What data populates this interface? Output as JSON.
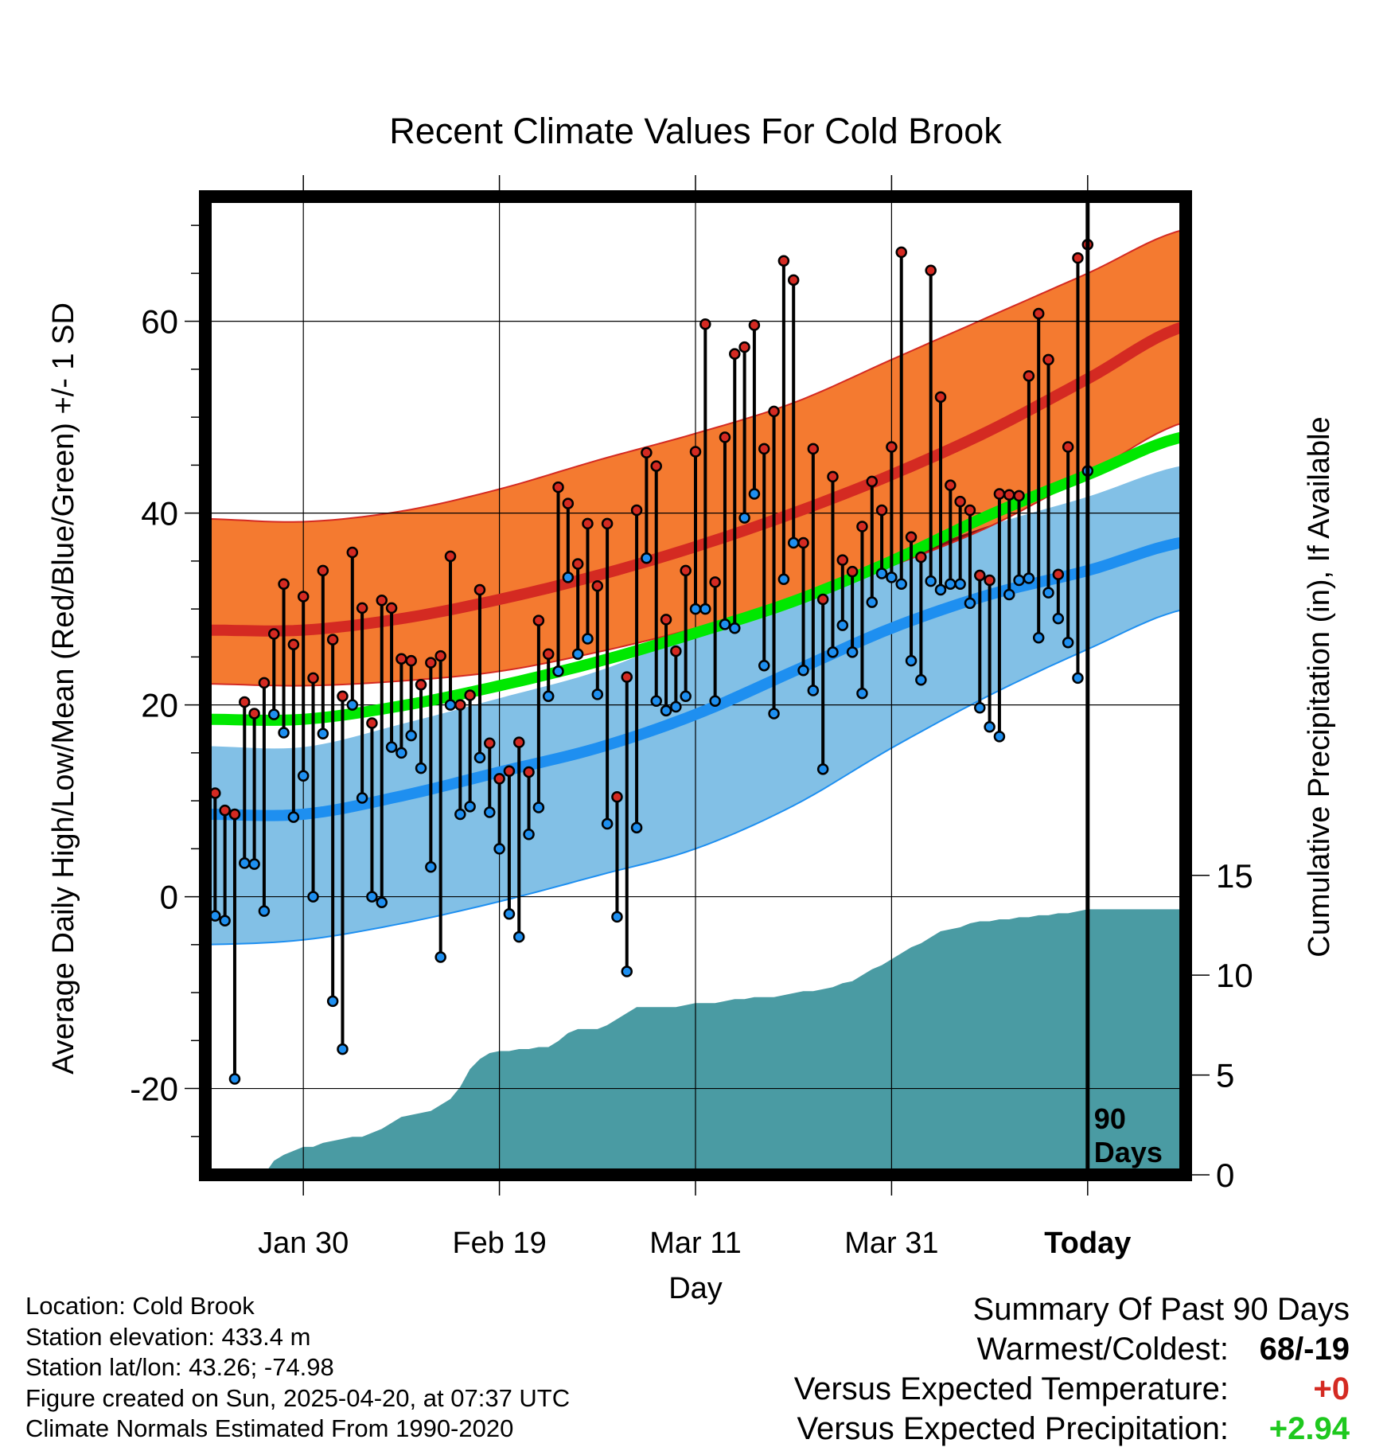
{
  "chart_data": {
    "type": "line",
    "title": "Recent Climate Values For Cold Brook",
    "xlabel": "Day",
    "ylabel": "Average Daily High/Low/Mean (Red/Blue/Green) +/- 1 SD",
    "y2label": "Cumulative Precipitation (in), If Available",
    "x_tick_labels": [
      "Jan 30",
      "Feb 19",
      "Mar 11",
      "Mar 31",
      "Today"
    ],
    "x_tick_days": [
      10,
      30,
      50,
      70,
      90
    ],
    "xlim": [
      0,
      100
    ],
    "ylim": [
      -29,
      73
    ],
    "y_ticks": [
      -20,
      0,
      20,
      40,
      60
    ],
    "y2_ticks": [
      0,
      5,
      10,
      15
    ],
    "y2lim": [
      0,
      49
    ],
    "today_day": 90,
    "today_label_line1": "90",
    "today_label_line2": "Days",
    "grid": true,
    "colors": {
      "high_band": "#f47a30",
      "high_line": "#d42a22",
      "low_band": "#82c0e6",
      "low_line": "#1e8ff0",
      "mean_line": "#00e800",
      "overlap": "#8c1414",
      "precip": "#4a9ba3",
      "point_high": "#d42a22",
      "point_low": "#1e8ff0"
    },
    "normals": {
      "days": [
        0,
        10,
        20,
        30,
        40,
        50,
        60,
        70,
        80,
        90,
        100
      ],
      "high_mean": [
        27.8,
        27.8,
        29.0,
        31.0,
        33.5,
        36.5,
        40.0,
        44.0,
        48.6,
        54.0,
        59.5
      ],
      "high_upper": [
        39.4,
        39.1,
        40.2,
        42.5,
        45.5,
        48.3,
        51.5,
        56.0,
        60.5,
        65.0,
        69.6
      ],
      "high_lower": [
        22.2,
        22.0,
        22.5,
        23.5,
        25.5,
        28.0,
        31.0,
        34.5,
        38.6,
        44.0,
        49.5
      ],
      "mean": [
        18.5,
        18.5,
        19.9,
        22.0,
        24.5,
        27.5,
        30.8,
        35.0,
        39.8,
        44.0,
        48.0
      ],
      "low_mean": [
        8.6,
        8.6,
        10.5,
        13.0,
        15.5,
        19.0,
        23.5,
        28.0,
        31.5,
        34.0,
        37.0
      ],
      "low_upper": [
        15.7,
        15.6,
        18.0,
        20.7,
        23.5,
        27.5,
        31.0,
        35.0,
        38.7,
        41.7,
        45.0
      ],
      "low_lower": [
        -5.0,
        -4.5,
        -2.8,
        -0.5,
        2.2,
        5.0,
        9.5,
        15.5,
        21.0,
        25.8,
        30.0
      ]
    },
    "series": [
      {
        "name": "High",
        "values": [
          10.8,
          9.0,
          8.6,
          20.3,
          19.1,
          22.3,
          27.4,
          32.6,
          26.3,
          31.3,
          22.8,
          34.0,
          26.8,
          20.9,
          35.9,
          30.1,
          18.1,
          30.9,
          30.1,
          24.8,
          24.6,
          22.1,
          24.4,
          25.1,
          35.5,
          20.0,
          21.0,
          32.0,
          16.0,
          12.3,
          13.1,
          16.1,
          13.0,
          28.8,
          25.3,
          42.7,
          41.0,
          34.7,
          38.9,
          32.4,
          38.9,
          10.4,
          22.9,
          40.3,
          46.3,
          44.9,
          28.9,
          25.6,
          34.0,
          46.4,
          59.7,
          32.8,
          47.9,
          56.6,
          57.3,
          59.6,
          46.7,
          50.6,
          66.3,
          64.3,
          36.9,
          46.7,
          31.0,
          43.8,
          35.1,
          33.9,
          38.6,
          43.3,
          40.3,
          46.9,
          67.2,
          37.5,
          35.4,
          65.3,
          52.1,
          42.9,
          41.2,
          40.3,
          33.5,
          33.0,
          42.0,
          41.9,
          41.8,
          54.3,
          60.8,
          56.0,
          33.6,
          46.9,
          66.6,
          68.0
        ],
        "color": "#d42a22"
      },
      {
        "name": "Low",
        "values": [
          -2.0,
          -2.5,
          -19.0,
          3.5,
          3.4,
          -1.5,
          19.0,
          17.1,
          8.3,
          12.6,
          0.0,
          17.0,
          -10.9,
          -15.9,
          20.0,
          10.3,
          0.0,
          -0.6,
          15.6,
          15.0,
          16.8,
          13.4,
          3.1,
          -6.3,
          20.0,
          8.6,
          9.4,
          14.5,
          8.8,
          5.0,
          -1.8,
          -4.2,
          6.5,
          9.3,
          20.9,
          23.5,
          33.3,
          25.3,
          26.9,
          21.1,
          7.6,
          -2.1,
          -7.8,
          7.2,
          35.3,
          20.4,
          19.4,
          19.8,
          20.9,
          30.0,
          30.0,
          20.4,
          28.4,
          28.0,
          39.5,
          42.0,
          24.1,
          19.1,
          33.1,
          36.9,
          23.6,
          21.5,
          13.3,
          25.5,
          28.3,
          25.5,
          21.2,
          30.7,
          33.7,
          33.3,
          32.6,
          24.6,
          22.6,
          32.9,
          32.0,
          32.6,
          32.6,
          30.6,
          19.7,
          17.7,
          16.7,
          31.5,
          33.0,
          33.2,
          27.0,
          31.7,
          29.0,
          26.5,
          22.8,
          44.4
        ],
        "color": "#1e8ff0"
      },
      {
        "name": "Cumulative Precipitation",
        "days": [
          0,
          6,
          7,
          8,
          9,
          10,
          11,
          12,
          13,
          14,
          15,
          16,
          17,
          18,
          19,
          20,
          21,
          22,
          23,
          24,
          25,
          26,
          27,
          28,
          29,
          30,
          31,
          32,
          33,
          34,
          35,
          36,
          37,
          38,
          39,
          40,
          41,
          42,
          43,
          44,
          45,
          46,
          47,
          48,
          49,
          50,
          51,
          52,
          53,
          54,
          55,
          56,
          57,
          58,
          59,
          60,
          61,
          62,
          63,
          64,
          65,
          66,
          67,
          68,
          69,
          70,
          71,
          72,
          73,
          74,
          75,
          76,
          77,
          78,
          79,
          80,
          81,
          82,
          83,
          84,
          85,
          86,
          87,
          88,
          89,
          90,
          100
        ],
        "values": [
          0,
          0,
          0.7,
          1.0,
          1.2,
          1.4,
          1.4,
          1.6,
          1.7,
          1.8,
          1.9,
          1.9,
          2.1,
          2.3,
          2.6,
          2.9,
          3.0,
          3.1,
          3.2,
          3.5,
          3.8,
          4.4,
          5.3,
          5.8,
          6.1,
          6.2,
          6.2,
          6.3,
          6.3,
          6.4,
          6.4,
          6.7,
          7.1,
          7.3,
          7.3,
          7.3,
          7.5,
          7.8,
          8.1,
          8.4,
          8.4,
          8.4,
          8.4,
          8.4,
          8.5,
          8.6,
          8.6,
          8.6,
          8.7,
          8.8,
          8.8,
          8.9,
          8.9,
          8.9,
          9.0,
          9.1,
          9.2,
          9.2,
          9.3,
          9.4,
          9.6,
          9.7,
          10.0,
          10.3,
          10.5,
          10.8,
          11.1,
          11.4,
          11.6,
          11.9,
          12.2,
          12.3,
          12.4,
          12.6,
          12.7,
          12.7,
          12.8,
          12.8,
          12.9,
          12.9,
          13.0,
          13.0,
          13.1,
          13.1,
          13.2,
          13.3,
          13.3
        ]
      }
    ]
  },
  "info": {
    "location": "Location: Cold Brook",
    "elevation": "Station elevation: 433.4 m",
    "latlon": "Station lat/lon: 43.26; -74.98",
    "created": "Figure created on Sun, 2025-04-20, at 07:37 UTC",
    "normals": "Climate Normals Estimated From 1990-2020"
  },
  "summary": {
    "title": "Summary Of Past 90 Days",
    "warm_cold_label": "Warmest/Coldest:",
    "warm_cold_value": "68/-19",
    "temp_label": "Versus Expected Temperature:",
    "temp_value": "+0",
    "temp_color": "#d42a22",
    "precip_label": "Versus Expected Precipitation:",
    "precip_value": "+2.94",
    "precip_color": "#1ec81e"
  }
}
